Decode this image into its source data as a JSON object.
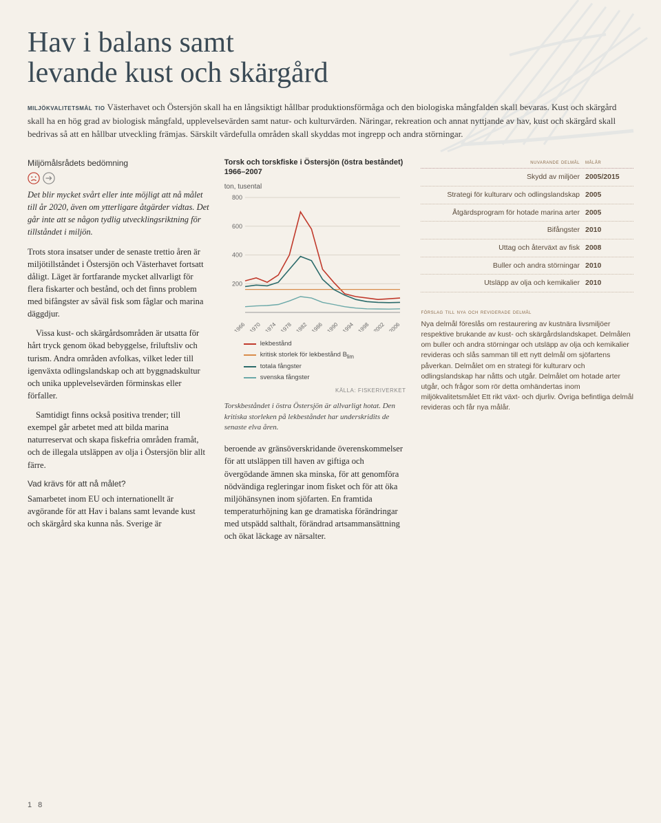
{
  "title": "Hav i balans samt\nlevande kust och skärgård",
  "intro_label": "miljökvalitetsmål tio",
  "intro_text": "Västerhavet och Östersjön skall ha en långsiktigt hållbar produktionsförmåga och den biologiska mångfalden skall bevaras. Kust och skärgård skall ha en hög grad av biologisk mångfald, upplevelsevärden samt natur- och kulturvärden. Näringar, rekreation och annat nyttjande av hav, kust och skärgård skall bedrivas så att en hållbar utveckling främjas. Särskilt värdefulla områden skall skyddas mot ingrepp och andra störningar.",
  "left": {
    "h1": "Miljömålsrådets bedömning",
    "italic": "Det blir mycket svårt eller inte möjligt att nå målet till år 2020, även om ytterligare åtgärder vidtas. Det går inte att se någon tydlig utvecklingsriktning för tillståndet i miljön.",
    "p1": "Trots stora insatser under de senaste trettio åren är miljötillståndet i Östersjön och Västerhavet fortsatt dåligt. Läget är fortfarande mycket allvarligt för flera fiskarter och bestånd, och det finns problem med bifångster av såväl fisk som fåglar och marina däggdjur.",
    "p2": "Vissa kust- och skärgårdsområden är utsatta för hårt tryck genom ökad bebyggelse, friluftsliv och turism. Andra områden avfolkas, vilket leder till igenväxta odlingslandskap och att byggnadskultur och unika upplevelsevärden förminskas eller förfaller.",
    "p3": "Samtidigt finns också positiva trender; till exempel går arbetet med att bilda marina naturreservat och skapa fiskefria områden framåt, och de illegala utsläppen av olja i Östersjön blir allt färre.",
    "q": "Vad krävs för att nå målet?",
    "p4": "Samarbetet inom EU och internationellt är avgörande för att Hav i balans samt levande kust och skärgård ska kunna nås. Sverige är"
  },
  "chart": {
    "title": "Torsk och torskfiske i Östersjön (östra beståndet) 1966–2007",
    "ylabel": "ton, tusental",
    "ylim": [
      0,
      800
    ],
    "yticks": [
      200,
      400,
      600,
      800
    ],
    "years": [
      1966,
      1970,
      1974,
      1978,
      1982,
      1986,
      1990,
      1994,
      1998,
      2002,
      2006
    ],
    "colors": {
      "lekbestand": "#c0392b",
      "kritisk": "#d98c4a",
      "totala": "#2a6a6a",
      "svenska": "#6aa8a8",
      "grid": "#d2cbbf",
      "axis": "#999"
    },
    "series": {
      "lekbestand": [
        220,
        240,
        210,
        260,
        400,
        700,
        580,
        300,
        210,
        130,
        110,
        100,
        90,
        95,
        100
      ],
      "kritisk": [
        160,
        160,
        160,
        160,
        160,
        160,
        160,
        160,
        160,
        160,
        160,
        160,
        160,
        160,
        160
      ],
      "totala": [
        180,
        190,
        185,
        210,
        300,
        390,
        360,
        230,
        160,
        120,
        90,
        75,
        70,
        68,
        70
      ],
      "svenska": [
        40,
        45,
        48,
        55,
        80,
        110,
        100,
        70,
        55,
        40,
        30,
        25,
        24,
        23,
        25
      ]
    },
    "legend": [
      {
        "label": "lekbestånd",
        "color": "#c0392b"
      },
      {
        "label": "kritisk storlek för lekbestånd B_lim",
        "color": "#d98c4a"
      },
      {
        "label": "totala fångster",
        "color": "#2a6a6a"
      },
      {
        "label": "svenska fångster",
        "color": "#6aa8a8"
      }
    ],
    "source": "KÄLLA: FISKERIVERKET",
    "caption": "Torskbeståndet i östra Östersjön är allvarligt hotat. Den kritiska storleken på lekbeståndet har underskridits de senaste elva åren.",
    "mid_para": "beroende av gränsöverskridande överenskommelser för att utsläppen till haven av giftiga och övergödande ämnen ska minska, för att genomföra nödvändiga regleringar inom fisket och för att öka miljöhänsynen inom sjöfarten. En framtida temperaturhöjning kan ge dramatiska förändringar med utspädd salthalt, förändrad artsammansättning och ökat läckage av närsalter."
  },
  "right": {
    "hdr1": "nuvarande delmål",
    "hdr2": "målår",
    "rows": [
      {
        "label": "Skydd av miljöer",
        "year": "2005/2015"
      },
      {
        "label": "Strategi för kulturarv och odlingslandskap",
        "year": "2005"
      },
      {
        "label": "Åtgärdsprogram för hotade marina arter",
        "year": "2005"
      },
      {
        "label": "Bifångster",
        "year": "2010"
      },
      {
        "label": "Uttag och återväxt av fisk",
        "year": "2008"
      },
      {
        "label": "Buller och andra störningar",
        "year": "2010"
      },
      {
        "label": "Utsläpp av olja och kemikalier",
        "year": "2010"
      }
    ],
    "sub": "förslag till nya och reviderade delmål",
    "para": "Nya delmål föreslås om restaurering av kustnära livsmiljöer respektive brukande av kust- och skärgårdslandskapet. Delmålen om buller och andra störningar och utsläpp av olja och kemikalier revideras och slås samman till ett nytt delmål om sjöfartens påverkan. Delmålet om en strategi för kulturarv och odlingslandskap har nåtts och utgår. Delmålet om hotade arter utgår, och frågor som rör detta omhändertas inom miljökvalitetsmålet Ett rikt växt- och djurliv. Övriga befintliga delmål revideras och får nya målår."
  },
  "pagenum": "1 8"
}
